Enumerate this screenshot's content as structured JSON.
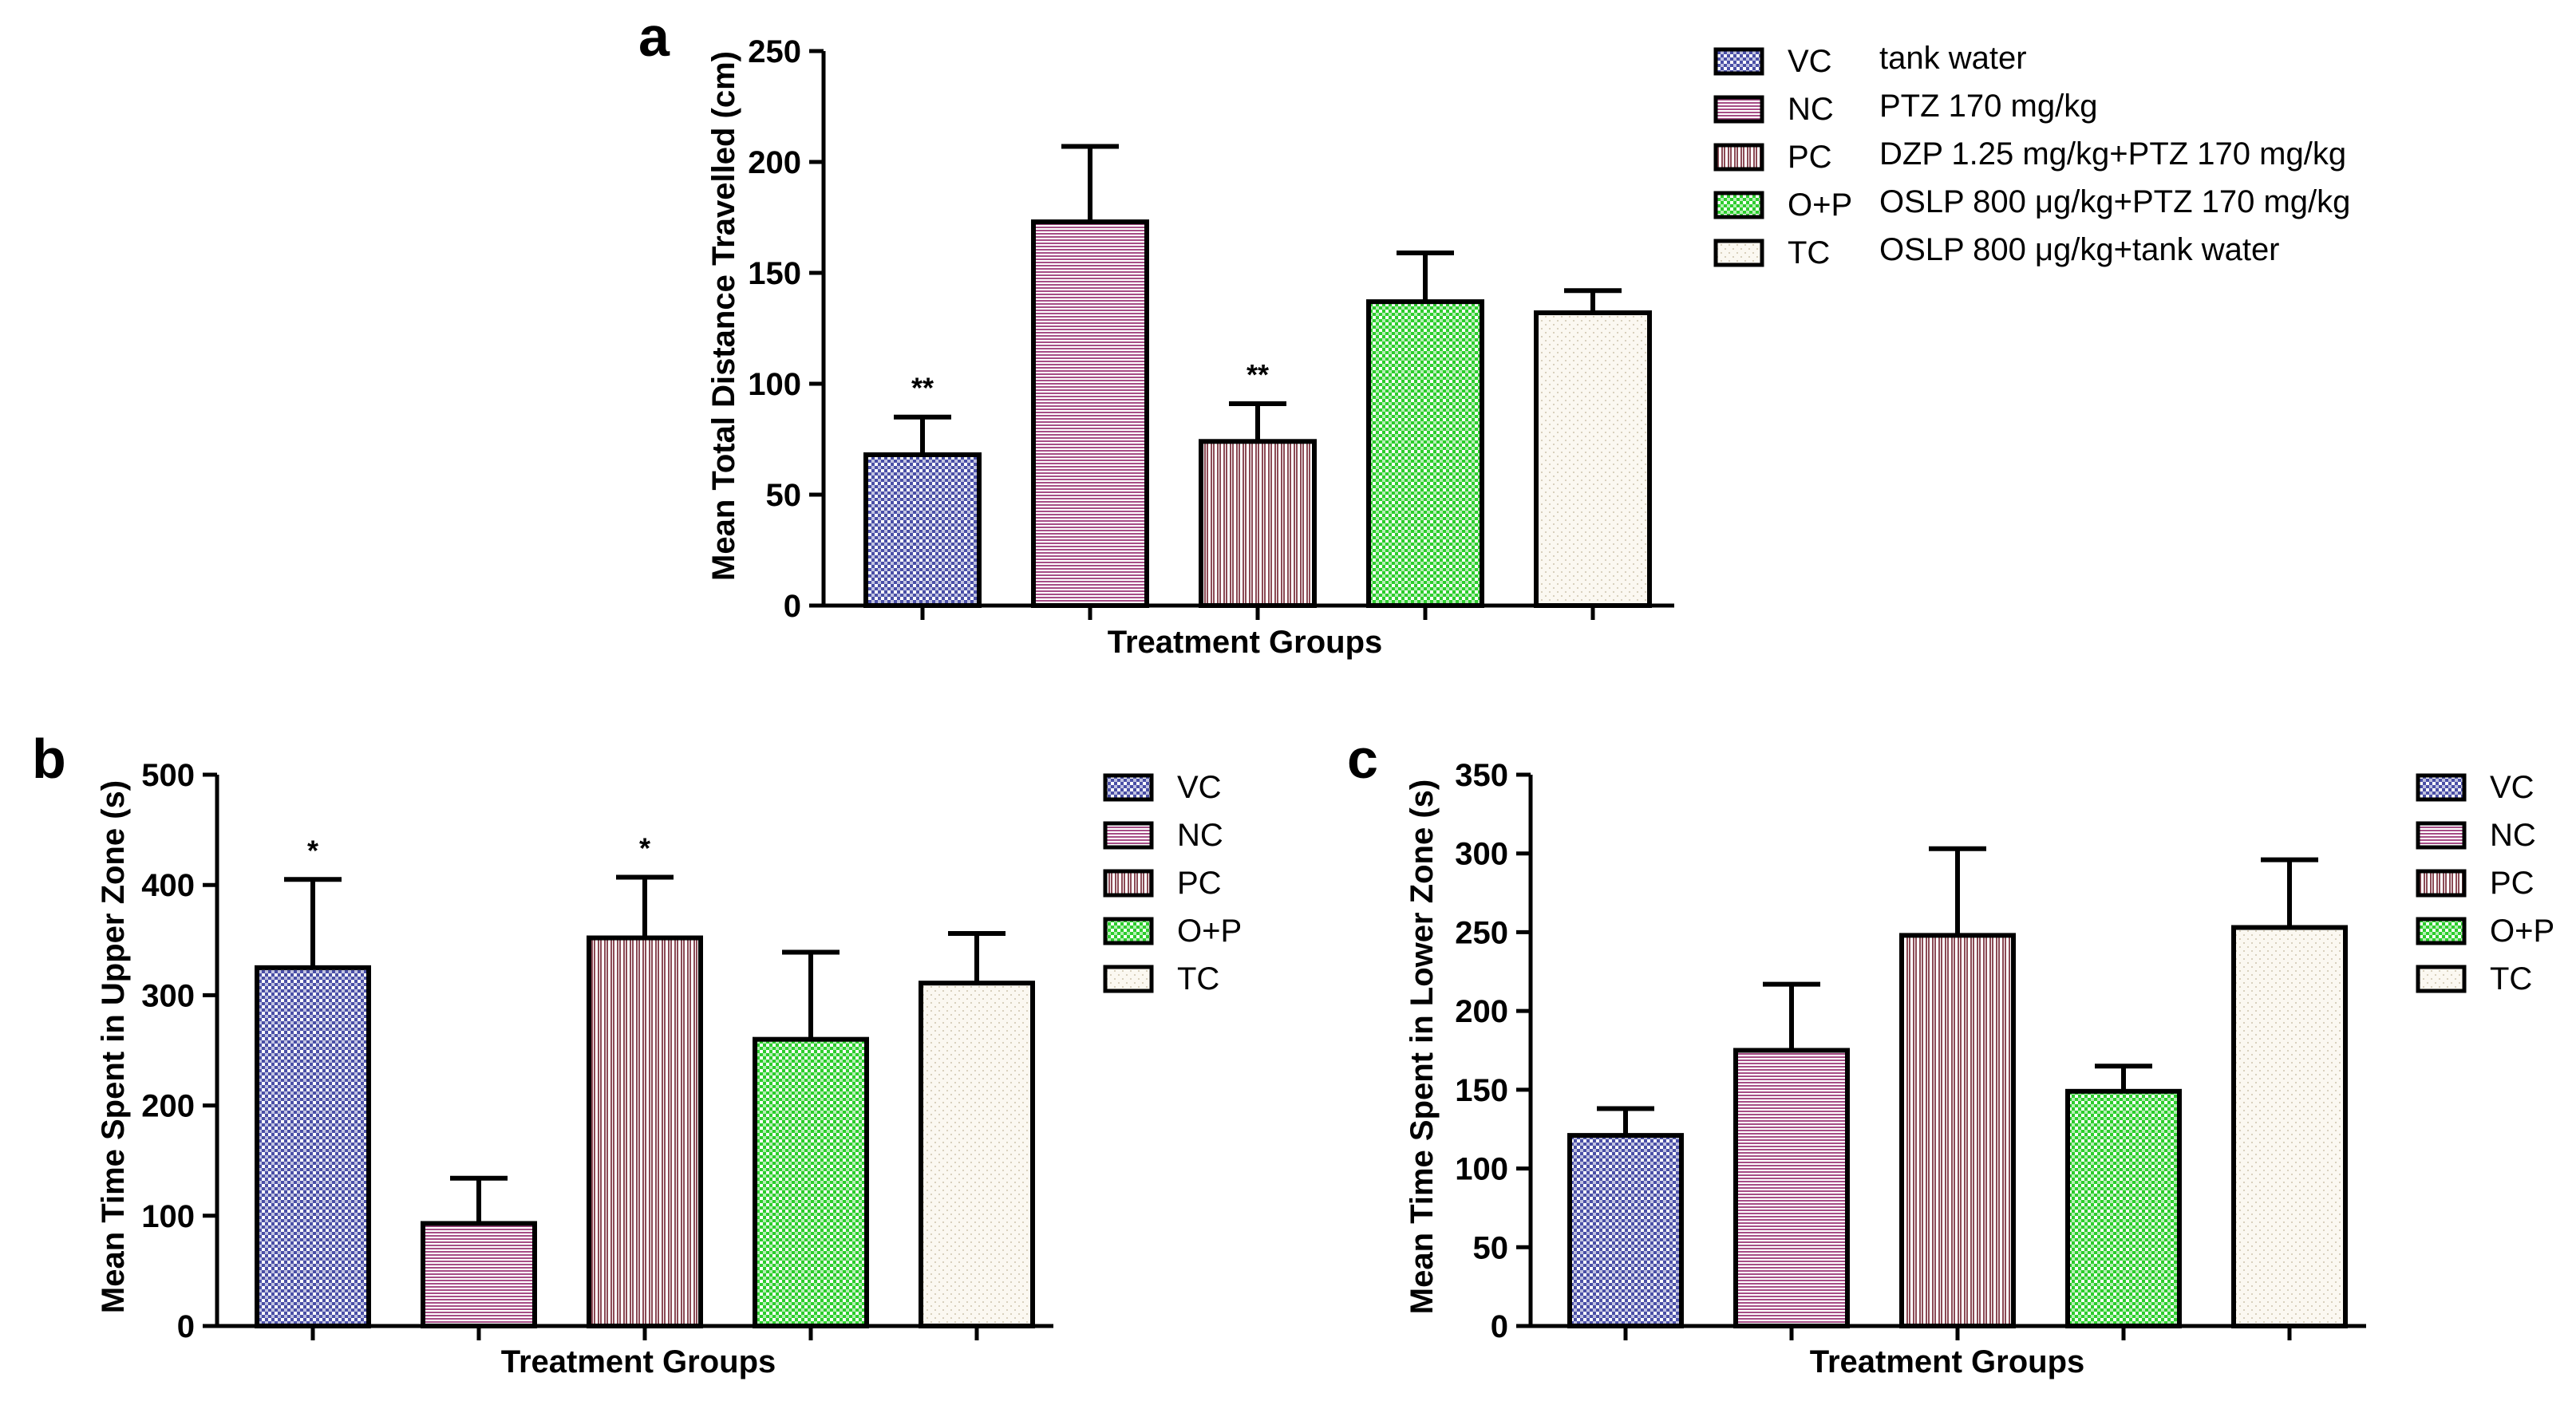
{
  "chart_data": [
    {
      "panel": "a",
      "type": "bar",
      "title": "",
      "xlabel": "Treatment  Groups",
      "ylabel": "Mean Total Distance Travelled (cm)",
      "ylim": [
        0,
        250
      ],
      "yticks": [
        0,
        50,
        100,
        150,
        200,
        250
      ],
      "categories": [
        "VC",
        "NC",
        "PC",
        "O+P",
        "TC"
      ],
      "values": [
        68,
        173,
        74,
        137,
        132
      ],
      "errors": [
        17,
        34,
        17,
        22,
        10
      ],
      "significance": [
        "**",
        "",
        "**",
        "",
        ""
      ],
      "legend": [
        {
          "code": "VC",
          "desc": "tank water"
        },
        {
          "code": "NC",
          "desc": "PTZ 170 mg/kg"
        },
        {
          "code": "PC",
          "desc": "DZP 1.25 mg/kg+PTZ 170 mg/kg"
        },
        {
          "code": "O+P",
          "desc": "OSLP 800 μg/kg+PTZ 170 mg/kg"
        },
        {
          "code": "TC",
          "desc": "OSLP 800 μg/kg+tank water"
        }
      ]
    },
    {
      "panel": "b",
      "type": "bar",
      "title": "",
      "xlabel": "Treatment  Groups",
      "ylabel": "Mean Time Spent in Upper Zone (s)",
      "ylim": [
        0,
        500
      ],
      "yticks": [
        0,
        100,
        200,
        300,
        400,
        500
      ],
      "categories": [
        "VC",
        "NC",
        "PC",
        "O+P",
        "TC"
      ],
      "values": [
        325,
        93,
        352,
        260,
        311
      ],
      "errors": [
        80,
        41,
        55,
        79,
        45
      ],
      "significance": [
        "*",
        "",
        "*",
        "",
        ""
      ],
      "legend": [
        {
          "code": "VC"
        },
        {
          "code": "NC"
        },
        {
          "code": "PC"
        },
        {
          "code": "O+P"
        },
        {
          "code": "TC"
        }
      ]
    },
    {
      "panel": "c",
      "type": "bar",
      "title": "",
      "xlabel": "Treatment  Groups",
      "ylabel": "Mean Time Spent in Lower Zone (s)",
      "ylim": [
        0,
        350
      ],
      "yticks": [
        0,
        50,
        100,
        150,
        200,
        250,
        300,
        350
      ],
      "categories": [
        "VC",
        "NC",
        "PC",
        "O+P",
        "TC"
      ],
      "values": [
        121,
        175,
        248,
        149,
        253
      ],
      "errors": [
        17,
        42,
        55,
        16,
        43
      ],
      "significance": [
        "",
        "",
        "",
        "",
        ""
      ],
      "legend": [
        {
          "code": "VC"
        },
        {
          "code": "NC"
        },
        {
          "code": "PC"
        },
        {
          "code": "O+P"
        },
        {
          "code": "TC"
        }
      ]
    }
  ],
  "colors": {
    "VC": "#4a4fa6",
    "NC": "#a64d86",
    "PC": "#8b4a55",
    "O+P": "#2ccd2c",
    "TC": "#d8d0bd",
    "axis": "#000000"
  },
  "patterns": {
    "VC": "checker",
    "NC": "hlines",
    "PC": "vlines",
    "O+P": "checker",
    "TC": "dots"
  }
}
